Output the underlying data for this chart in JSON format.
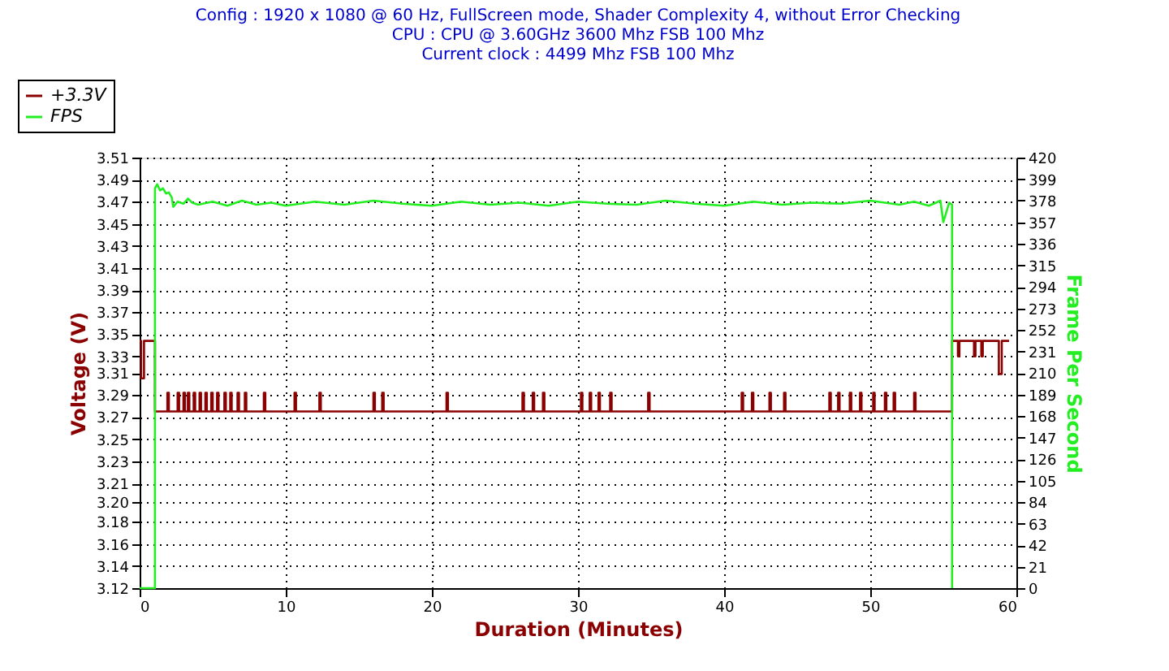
{
  "chart_data": {
    "type": "line",
    "title": "Config : 1920 x 1080 @ 60 Hz, FullScreen mode, Shader Complexity 4, without Error Checking",
    "subtitle": [
      "CPU : CPU @ 3.60GHz 3600 Mhz FSB 100 Mhz",
      "Current clock : 4499 Mhz FSB 100 Mhz"
    ],
    "xlabel": "Duration (Minutes)",
    "ylabel": "Voltage (V)",
    "y2label": "Frame Per Second",
    "xlim": [
      0,
      60
    ],
    "xticks": [
      0,
      10,
      20,
      30,
      40,
      50,
      60
    ],
    "ylim": [
      3.12,
      3.51
    ],
    "yticks": [
      {
        "value": 3.12,
        "label": "3.12"
      },
      {
        "value": 3.14,
        "label": "3.14"
      },
      {
        "value": 3.16,
        "label": "3.16"
      },
      {
        "value": 3.18,
        "label": "3.18"
      },
      {
        "value": 3.198,
        "label": "3.20"
      },
      {
        "value": 3.2149,
        "label": "3.21"
      },
      {
        "value": 3.2349,
        "label": "3.23"
      },
      {
        "value": 3.2549,
        "label": "3.25"
      },
      {
        "value": 3.2749,
        "label": "3.27"
      },
      {
        "value": 3.2949,
        "label": "3.29"
      },
      {
        "value": 3.3149,
        "label": "3.31"
      },
      {
        "value": 3.33,
        "label": "3.33"
      },
      {
        "value": 3.35,
        "label": "3.35"
      },
      {
        "value": 3.37,
        "label": "3.37"
      },
      {
        "value": 3.39,
        "label": "3.39"
      },
      {
        "value": 3.41,
        "label": "3.41"
      },
      {
        "value": 3.43,
        "label": "3.43"
      },
      {
        "value": 3.45,
        "label": "3.45"
      },
      {
        "value": 3.47,
        "label": "3.47"
      },
      {
        "value": 3.49,
        "label": "3.49"
      },
      {
        "value": 3.51,
        "label": "3.51"
      }
    ],
    "y2lim": [
      0,
      420
    ],
    "y2ticks": [
      0,
      21,
      42,
      63,
      84,
      105,
      126,
      147,
      168,
      189,
      210,
      231,
      252,
      273,
      294,
      315,
      336,
      357,
      378,
      399,
      420
    ],
    "grid": true,
    "legend": "top left",
    "marker": "none",
    "line_style": "solid",
    "series": [
      {
        "name": "+3.3V",
        "color": "#8b0000",
        "type": "step",
        "x": [
          0,
          0.1,
          0.3,
          1.05,
          1.9,
          2.0,
          2.6,
          2.7,
          3.0,
          3.1,
          3.3,
          3.4,
          3.7,
          3.8,
          4.1,
          4.2,
          4.5,
          4.6,
          4.9,
          5.0,
          5.3,
          5.4,
          5.8,
          5.9,
          6.2,
          6.3,
          6.7,
          6.8,
          7.2,
          7.3,
          8.5,
          8.6,
          10.6,
          10.7,
          12.3,
          12.4,
          16.0,
          16.1,
          16.6,
          16.7,
          21.0,
          21.1,
          26.2,
          26.3,
          26.9,
          27.0,
          27.6,
          27.7,
          30.2,
          30.3,
          30.8,
          30.9,
          31.4,
          31.5,
          32.2,
          32.3,
          34.8,
          34.9,
          41.2,
          41.3,
          41.9,
          42.0,
          43.1,
          43.2,
          44.1,
          44.2,
          47.2,
          47.3,
          47.8,
          47.9,
          48.6,
          48.7,
          49.3,
          49.4,
          50.2,
          50.3,
          51.0,
          51.1,
          51.6,
          51.7,
          53.0,
          53.1,
          55.6,
          56.0,
          56.1,
          57.1,
          57.2,
          57.6,
          57.7,
          58.8,
          59.0,
          59.5
        ],
        "values": [
          3.344,
          3.31,
          3.344,
          3.28,
          3.297,
          3.28,
          3.297,
          3.28,
          3.297,
          3.28,
          3.297,
          3.28,
          3.297,
          3.28,
          3.297,
          3.28,
          3.297,
          3.28,
          3.297,
          3.28,
          3.297,
          3.28,
          3.297,
          3.28,
          3.297,
          3.28,
          3.297,
          3.28,
          3.297,
          3.28,
          3.297,
          3.28,
          3.297,
          3.28,
          3.297,
          3.28,
          3.297,
          3.28,
          3.297,
          3.28,
          3.297,
          3.28,
          3.297,
          3.28,
          3.297,
          3.28,
          3.297,
          3.28,
          3.297,
          3.28,
          3.297,
          3.28,
          3.297,
          3.28,
          3.297,
          3.28,
          3.297,
          3.28,
          3.297,
          3.28,
          3.297,
          3.28,
          3.297,
          3.28,
          3.297,
          3.28,
          3.297,
          3.28,
          3.297,
          3.28,
          3.297,
          3.28,
          3.297,
          3.28,
          3.297,
          3.28,
          3.297,
          3.28,
          3.297,
          3.28,
          3.297,
          3.28,
          3.344,
          3.33,
          3.344,
          3.33,
          3.344,
          3.33,
          3.344,
          3.314,
          3.344,
          3.344
        ]
      },
      {
        "name": "FPS",
        "color": "#22ee22",
        "axis": "y2",
        "x": [
          0,
          1.05,
          1.05,
          1.2,
          1.4,
          1.6,
          1.8,
          2.0,
          2.2,
          2.3,
          2.6,
          3.0,
          3.3,
          3.6,
          4.0,
          5,
          6,
          7,
          8,
          9,
          10,
          12,
          14,
          16,
          18,
          20,
          22,
          24,
          26,
          28,
          30,
          32,
          34,
          36,
          38,
          40,
          42,
          44,
          46,
          48,
          50,
          52,
          53,
          54,
          54.5,
          54.8,
          55.0,
          55.4,
          55.6,
          55.6
        ],
        "values": [
          0,
          0,
          390,
          394,
          388,
          390,
          385,
          386,
          381,
          372,
          377,
          375,
          380,
          376,
          374,
          377,
          373,
          378,
          374,
          376,
          373,
          377,
          374,
          378,
          375,
          373,
          377,
          374,
          376,
          373,
          377,
          375,
          374,
          378,
          375,
          373,
          377,
          374,
          376,
          375,
          378,
          374,
          377,
          373,
          376,
          378,
          357,
          376,
          374,
          0
        ]
      }
    ]
  }
}
